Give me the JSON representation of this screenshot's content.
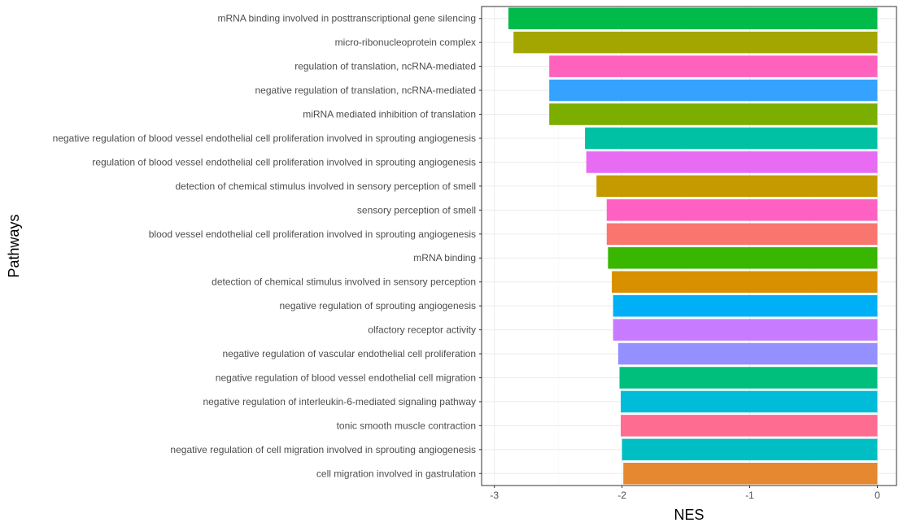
{
  "chart_data": {
    "type": "bar",
    "orientation": "horizontal",
    "xlabel": "NES",
    "ylabel": "Pathways",
    "xlim": [
      -3.1,
      0.15
    ],
    "xticks": [
      -3,
      -2,
      -1,
      0
    ],
    "grid": true,
    "legend": "none",
    "bars": [
      {
        "label": "mRNA binding involved in posttranscriptional gene silencing",
        "value": -2.89,
        "color": "#00BA4A"
      },
      {
        "label": "micro-ribonucleoprotein complex",
        "value": -2.85,
        "color": "#A3A500"
      },
      {
        "label": "regulation of translation, ncRNA-mediated",
        "value": -2.57,
        "color": "#FF62BC"
      },
      {
        "label": "negative regulation of translation, ncRNA-mediated",
        "value": -2.57,
        "color": "#35A2FF"
      },
      {
        "label": "miRNA mediated inhibition of translation",
        "value": -2.57,
        "color": "#7CAE00"
      },
      {
        "label": "negative regulation of blood vessel endothelial cell proliferation involved in sprouting angiogenesis",
        "value": -2.29,
        "color": "#00C1A3"
      },
      {
        "label": "regulation of blood vessel endothelial cell proliferation involved in sprouting angiogenesis",
        "value": -2.28,
        "color": "#E76BF3"
      },
      {
        "label": "detection of chemical stimulus involved in sensory perception of smell",
        "value": -2.2,
        "color": "#C49A00"
      },
      {
        "label": "sensory perception of smell",
        "value": -2.12,
        "color": "#FF61C3"
      },
      {
        "label": "blood vessel endothelial cell proliferation involved in sprouting angiogenesis",
        "value": -2.12,
        "color": "#F8766D"
      },
      {
        "label": "mRNA binding",
        "value": -2.11,
        "color": "#39B600"
      },
      {
        "label": "detection of chemical stimulus involved in sensory perception",
        "value": -2.08,
        "color": "#D89000"
      },
      {
        "label": "negative regulation of sprouting angiogenesis",
        "value": -2.07,
        "color": "#00B0F6"
      },
      {
        "label": "olfactory receptor activity",
        "value": -2.07,
        "color": "#C77CFF"
      },
      {
        "label": "negative regulation of vascular endothelial cell proliferation",
        "value": -2.03,
        "color": "#9590FF"
      },
      {
        "label": "negative regulation of blood vessel endothelial cell migration",
        "value": -2.02,
        "color": "#00BF7D"
      },
      {
        "label": "negative regulation of interleukin-6-mediated signaling pathway",
        "value": -2.01,
        "color": "#00BCD8"
      },
      {
        "label": "tonic smooth muscle contraction",
        "value": -2.01,
        "color": "#FF6C91"
      },
      {
        "label": "negative regulation of cell migration involved in sprouting angiogenesis",
        "value": -2.0,
        "color": "#00BFC4"
      },
      {
        "label": "cell migration involved in gastrulation",
        "value": -1.99,
        "color": "#E58830"
      }
    ]
  }
}
